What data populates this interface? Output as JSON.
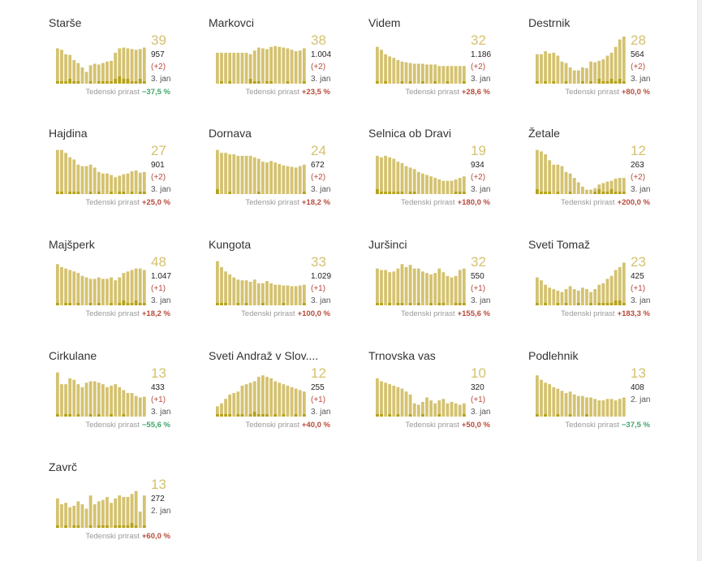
{
  "footer_label": "Tedenski prirast",
  "colors": {
    "bar": "#d4c270",
    "bar_new": "#b5a219",
    "value": "#d4c270",
    "decrease": "#3fa66b",
    "increase": "#b84a3a"
  },
  "chart_data": [
    {
      "type": "bar",
      "title": "Starše",
      "active": 39,
      "total": "957",
      "delta": "(+2)",
      "date": "3. jan",
      "weekly_change": "−37,5 %",
      "trend": "down",
      "values": [
        48,
        46,
        40,
        39,
        32,
        28,
        22,
        16,
        25,
        27,
        26,
        28,
        30,
        31,
        42,
        48,
        49,
        48,
        47,
        46,
        47,
        49
      ],
      "new_cases": [
        1,
        1,
        1,
        2,
        1,
        1,
        0,
        0,
        1,
        0,
        1,
        1,
        1,
        1,
        2,
        3,
        2,
        2,
        1,
        1,
        2,
        1
      ]
    },
    {
      "type": "bar",
      "title": "Markovci",
      "active": 38,
      "total": "1.004",
      "delta": "(+2)",
      "date": "3. jan",
      "weekly_change": "+23,5 %",
      "trend": "up",
      "values": [
        42,
        42,
        42,
        42,
        42,
        42,
        42,
        42,
        40,
        45,
        49,
        48,
        47,
        50,
        51,
        50,
        49,
        48,
        46,
        44,
        45,
        48
      ],
      "new_cases": [
        0,
        1,
        0,
        1,
        0,
        0,
        0,
        0,
        2,
        1,
        1,
        0,
        1,
        1,
        0,
        0,
        0,
        1,
        0,
        0,
        0,
        1
      ]
    },
    {
      "type": "bar",
      "title": "Videm",
      "active": 32,
      "total": "1.186",
      "delta": "(+2)",
      "date": "3. jan",
      "weekly_change": "+28,6 %",
      "trend": "up",
      "values": [
        50,
        46,
        40,
        37,
        35,
        32,
        30,
        29,
        28,
        27,
        27,
        27,
        26,
        26,
        26,
        24,
        24,
        24,
        24,
        24,
        24,
        24
      ],
      "new_cases": [
        1,
        0,
        1,
        0,
        0,
        0,
        1,
        0,
        1,
        0,
        0,
        1,
        0,
        0,
        1,
        0,
        0,
        1,
        0,
        0,
        0,
        1
      ]
    },
    {
      "type": "bar",
      "title": "Destrnik",
      "active": 28,
      "total": "564",
      "delta": "(+2)",
      "date": "3. jan",
      "weekly_change": "+80,0 %",
      "trend": "up",
      "values": [
        40,
        40,
        44,
        41,
        42,
        38,
        30,
        28,
        22,
        18,
        18,
        22,
        21,
        30,
        29,
        31,
        33,
        38,
        42,
        50,
        60,
        64
      ],
      "new_cases": [
        1,
        0,
        1,
        0,
        1,
        0,
        0,
        1,
        0,
        0,
        0,
        1,
        0,
        1,
        0,
        2,
        1,
        1,
        2,
        1,
        2,
        1
      ]
    },
    {
      "type": "bar",
      "title": "Hajdina",
      "active": 27,
      "total": "901",
      "delta": "(+2)",
      "date": "3. jan",
      "weekly_change": "+25,0 %",
      "trend": "up",
      "values": [
        60,
        60,
        56,
        50,
        47,
        40,
        38,
        38,
        40,
        36,
        30,
        28,
        28,
        26,
        23,
        25,
        27,
        28,
        31,
        32,
        29,
        30
      ],
      "new_cases": [
        1,
        1,
        0,
        1,
        1,
        1,
        0,
        0,
        1,
        0,
        1,
        0,
        0,
        1,
        0,
        1,
        1,
        0,
        1,
        0,
        1,
        1
      ]
    },
    {
      "type": "bar",
      "title": "Dornava",
      "active": 24,
      "total": "672",
      "delta": "(+2)",
      "date": "3. jan",
      "weekly_change": "+18,2 %",
      "trend": "up",
      "values": [
        60,
        56,
        56,
        54,
        54,
        52,
        52,
        52,
        52,
        50,
        48,
        44,
        43,
        45,
        43,
        41,
        39,
        38,
        37,
        36,
        38,
        40
      ],
      "new_cases": [
        2,
        0,
        0,
        1,
        0,
        0,
        0,
        0,
        0,
        0,
        1,
        0,
        0,
        0,
        0,
        0,
        0,
        0,
        0,
        0,
        0,
        1
      ]
    },
    {
      "type": "bar",
      "title": "Selnica ob Dravi",
      "active": 19,
      "total": "934",
      "delta": "(+2)",
      "date": "3. jan",
      "weekly_change": "+180,0 %",
      "trend": "up",
      "values": [
        52,
        50,
        52,
        50,
        48,
        44,
        42,
        38,
        36,
        34,
        30,
        28,
        26,
        24,
        22,
        20,
        18,
        18,
        18,
        20,
        22,
        24
      ],
      "new_cases": [
        2,
        1,
        1,
        1,
        1,
        1,
        1,
        0,
        1,
        1,
        0,
        0,
        0,
        0,
        0,
        0,
        0,
        0,
        0,
        1,
        1,
        1
      ]
    },
    {
      "type": "bar",
      "title": "Žetale",
      "active": 12,
      "total": "263",
      "delta": "(+2)",
      "date": "3. jan",
      "weekly_change": "+200,0 %",
      "trend": "up",
      "values": [
        60,
        58,
        54,
        46,
        40,
        40,
        38,
        30,
        28,
        22,
        16,
        10,
        6,
        6,
        8,
        13,
        15,
        17,
        18,
        21,
        22,
        22
      ],
      "new_cases": [
        2,
        1,
        1,
        1,
        0,
        1,
        0,
        0,
        1,
        0,
        0,
        0,
        0,
        0,
        1,
        2,
        1,
        1,
        2,
        1,
        1,
        1
      ]
    },
    {
      "type": "bar",
      "title": "Majšperk",
      "active": 48,
      "total": "1.047",
      "delta": "(+1)",
      "date": "3. jan",
      "weekly_change": "+18,2 %",
      "trend": "up",
      "values": [
        56,
        52,
        50,
        48,
        46,
        44,
        40,
        38,
        36,
        36,
        38,
        36,
        36,
        38,
        34,
        38,
        44,
        46,
        48,
        50,
        50,
        48
      ],
      "new_cases": [
        1,
        0,
        1,
        1,
        0,
        1,
        0,
        0,
        1,
        0,
        1,
        0,
        0,
        1,
        0,
        1,
        2,
        1,
        1,
        2,
        1,
        1
      ]
    },
    {
      "type": "bar",
      "title": "Kungota",
      "active": 33,
      "total": "1.029",
      "delta": "(+1)",
      "date": "3. jan",
      "weekly_change": "+100,0 %",
      "trend": "up",
      "values": [
        60,
        52,
        46,
        42,
        38,
        35,
        34,
        34,
        32,
        35,
        30,
        30,
        33,
        30,
        28,
        28,
        27,
        27,
        26,
        26,
        27,
        28
      ],
      "new_cases": [
        1,
        1,
        1,
        0,
        0,
        1,
        0,
        1,
        0,
        0,
        0,
        1,
        0,
        0,
        0,
        0,
        1,
        0,
        0,
        0,
        0,
        1
      ]
    },
    {
      "type": "bar",
      "title": "Juršinci",
      "active": 32,
      "total": "550",
      "delta": "(+1)",
      "date": "3. jan",
      "weekly_change": "+155,6 %",
      "trend": "up",
      "values": [
        50,
        48,
        48,
        45,
        46,
        50,
        56,
        52,
        55,
        50,
        50,
        46,
        44,
        42,
        44,
        50,
        45,
        40,
        38,
        40,
        48,
        50
      ],
      "new_cases": [
        1,
        1,
        0,
        1,
        0,
        1,
        1,
        0,
        1,
        0,
        1,
        0,
        0,
        1,
        0,
        1,
        1,
        0,
        0,
        1,
        1,
        1
      ]
    },
    {
      "type": "bar",
      "title": "Sveti Tomaž",
      "active": 23,
      "total": "425",
      "delta": "(+1)",
      "date": "3. jan",
      "weekly_change": "+183,3 %",
      "trend": "up",
      "values": [
        38,
        34,
        28,
        24,
        22,
        20,
        18,
        22,
        26,
        22,
        20,
        24,
        22,
        18,
        22,
        28,
        30,
        36,
        40,
        48,
        52,
        58
      ],
      "new_cases": [
        1,
        0,
        1,
        0,
        0,
        1,
        0,
        1,
        0,
        0,
        1,
        0,
        0,
        1,
        0,
        1,
        1,
        1,
        1,
        2,
        2,
        1
      ]
    },
    {
      "type": "bar",
      "title": "Cirkulane",
      "active": 13,
      "total": "433",
      "delta": "(+1)",
      "date": "3. jan",
      "weekly_change": "−55,6 %",
      "trend": "down",
      "values": [
        60,
        44,
        44,
        52,
        50,
        44,
        40,
        46,
        48,
        48,
        46,
        44,
        40,
        42,
        44,
        40,
        36,
        32,
        32,
        28,
        26,
        27
      ],
      "new_cases": [
        1,
        0,
        1,
        1,
        0,
        1,
        0,
        0,
        1,
        0,
        1,
        0,
        0,
        1,
        0,
        0,
        1,
        0,
        0,
        0,
        0,
        0
      ]
    },
    {
      "type": "bar",
      "title": "Sveti Andraž v Slov....",
      "active": 12,
      "total": "255",
      "delta": "(+1)",
      "date": "3. jan",
      "weekly_change": "+40,0 %",
      "trend": "up",
      "values": [
        14,
        18,
        24,
        30,
        32,
        34,
        42,
        44,
        46,
        48,
        54,
        56,
        54,
        52,
        48,
        46,
        44,
        42,
        40,
        38,
        36,
        34
      ],
      "new_cases": [
        1,
        1,
        1,
        1,
        0,
        1,
        1,
        0,
        1,
        2,
        1,
        1,
        1,
        0,
        1,
        0,
        1,
        0,
        0,
        1,
        0,
        1
      ]
    },
    {
      "type": "bar",
      "title": "Trnovska vas",
      "active": 10,
      "total": "320",
      "delta": "(+1)",
      "date": "3. jan",
      "weekly_change": "+50,0 %",
      "trend": "up",
      "values": [
        52,
        48,
        46,
        44,
        42,
        40,
        38,
        34,
        30,
        18,
        16,
        20,
        26,
        22,
        18,
        22,
        24,
        18,
        20,
        18,
        16,
        18
      ],
      "new_cases": [
        1,
        1,
        0,
        1,
        0,
        1,
        0,
        0,
        1,
        0,
        0,
        1,
        0,
        0,
        0,
        1,
        0,
        0,
        0,
        0,
        0,
        1
      ]
    },
    {
      "type": "bar",
      "title": "Podlehnik",
      "active": 13,
      "total": "408",
      "delta": "",
      "date": "2. jan",
      "weekly_change": "−37,5 %",
      "trend": "down",
      "values": [
        56,
        50,
        46,
        44,
        40,
        38,
        35,
        32,
        34,
        30,
        28,
        28,
        26,
        26,
        24,
        22,
        22,
        24,
        24,
        22,
        24,
        26
      ],
      "new_cases": [
        1,
        0,
        1,
        0,
        0,
        1,
        0,
        0,
        1,
        0,
        0,
        0,
        1,
        0,
        0,
        0,
        0,
        0,
        0,
        0,
        0,
        0
      ]
    },
    {
      "type": "bar",
      "title": "Zavrč",
      "active": 13,
      "total": "272",
      "delta": "",
      "date": "2. jan",
      "weekly_change": "+60,0 %",
      "trend": "up",
      "values": [
        40,
        32,
        34,
        28,
        30,
        36,
        32,
        26,
        44,
        32,
        36,
        38,
        42,
        34,
        40,
        44,
        42,
        42,
        46,
        50,
        22,
        44
      ],
      "new_cases": [
        1,
        0,
        1,
        0,
        1,
        1,
        0,
        0,
        1,
        0,
        1,
        1,
        1,
        0,
        1,
        1,
        1,
        1,
        2,
        1,
        0,
        1
      ]
    }
  ]
}
